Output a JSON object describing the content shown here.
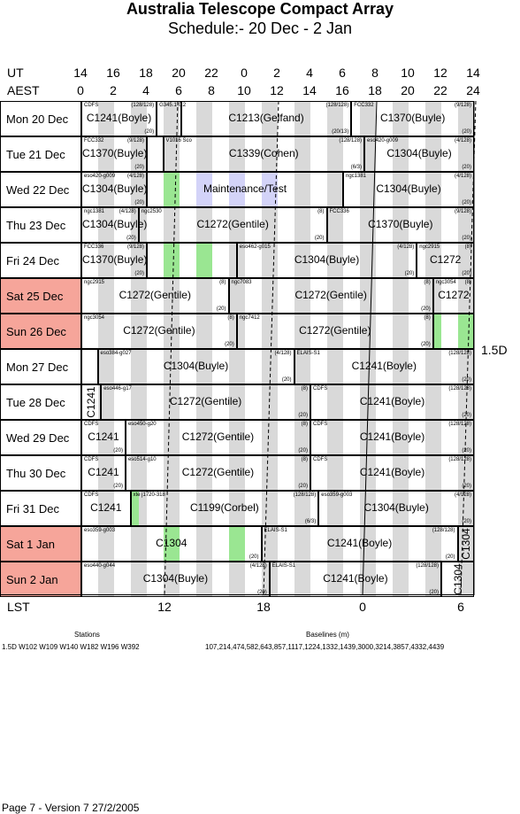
{
  "title": "Australia Telescope Compact Array",
  "subtitle": "Schedule:- 20 Dec - 2  Jan",
  "ut_label": "UT",
  "aest_label": "AEST",
  "lst_label": "LST",
  "ut_ticks": [
    "14",
    "16",
    "18",
    "20",
    "22",
    "0",
    "2",
    "4",
    "6",
    "8",
    "10",
    "12",
    "14"
  ],
  "aest_ticks": [
    "0",
    "2",
    "4",
    "6",
    "8",
    "10",
    "12",
    "14",
    "16",
    "18",
    "20",
    "22",
    "24"
  ],
  "lst_ticks": [
    "12",
    "18",
    "0",
    "6"
  ],
  "config": "1.5D",
  "days": [
    {
      "label": "Mon  20 Dec",
      "weekend": false,
      "blocks": [
        {
          "from": 0,
          "to": 4.6,
          "name": "C1241(Boyle)",
          "tl": "CDFS",
          "tr": "(128/128)",
          "br": "(20)"
        },
        {
          "from": 4.6,
          "to": 6.1,
          "name": "",
          "tl": "G345.1-0.2",
          "tr": "",
          "br": ""
        },
        {
          "from": 6.1,
          "to": 16.5,
          "name": "C1213(Gelfand)",
          "tl": "",
          "tr": "(128/128)",
          "br": "(20/13)"
        },
        {
          "from": 16.5,
          "to": 24,
          "name": "C1370(Buyle)",
          "tl": "FCC332",
          "tr": "(9/128)",
          "br": "(20)"
        }
      ]
    },
    {
      "label": "Tue  21 Dec",
      "weekend": false,
      "blocks": [
        {
          "from": 0,
          "to": 4,
          "name": "C1370(Buyle)",
          "tl": "FCC332",
          "tr": "(9/128)",
          "br": "(20)"
        },
        {
          "from": 4,
          "to": 5,
          "name": "",
          "tl": "",
          "tr": "",
          "br": ""
        },
        {
          "from": 5,
          "to": 17.3,
          "name": "C1339(Cohen)",
          "tl": "V1016 Sco",
          "tr": "(128/128)",
          "br": "(6/3)"
        },
        {
          "from": 17.3,
          "to": 24,
          "name": "C1304(Buyle)",
          "tl": "eso420-g009",
          "tr": "(4/128)",
          "br": "(20)"
        }
      ]
    },
    {
      "label": "Wed  22 Dec",
      "weekend": false,
      "blocks": [
        {
          "from": 0,
          "to": 4,
          "name": "C1304(Buyle)",
          "tl": "eso420-g009",
          "tr": "(4/128)",
          "br": "(20)"
        },
        {
          "from": 4,
          "to": 16,
          "name": "Maintenance/Test",
          "tl": "",
          "tr": "",
          "br": ""
        },
        {
          "from": 16,
          "to": 24,
          "name": "C1304(Buyle)",
          "tl": "ngc1381",
          "tr": "(4/128)",
          "br": "(20)"
        }
      ]
    },
    {
      "label": "Thu  23 Dec",
      "weekend": false,
      "blocks": [
        {
          "from": 0,
          "to": 3.5,
          "name": "C1304(Buyle)",
          "tl": "ngc1381",
          "tr": "(4/128)",
          "br": "(20)"
        },
        {
          "from": 3.5,
          "to": 15,
          "name": "C1272(Gentile)",
          "tl": "ngc2530",
          "tr": "(8)",
          "br": "(20)"
        },
        {
          "from": 15,
          "to": 24,
          "name": "C1370(Buyle)",
          "tl": "FCC336",
          "tr": "(9/128)",
          "br": "(20)"
        }
      ]
    },
    {
      "label": "Fri   24 Dec",
      "weekend": false,
      "blocks": [
        {
          "from": 0,
          "to": 4,
          "name": "C1370(Buyle)",
          "tl": "FCC336",
          "tr": "(9/128)",
          "br": "(20)"
        },
        {
          "from": 4,
          "to": 9.5,
          "name": "",
          "tl": "",
          "tr": "",
          "br": ""
        },
        {
          "from": 9.5,
          "to": 20.5,
          "name": "C1304(Buyle)",
          "tl": "eso462-g015",
          "tr": "(4/128)",
          "br": "(20)"
        },
        {
          "from": 20.5,
          "to": 24,
          "name": "C1272",
          "tl": "ngc2915",
          "tr": "(8)",
          "br": "(20)"
        }
      ]
    },
    {
      "label": "Sat   25 Dec",
      "weekend": true,
      "blocks": [
        {
          "from": 0,
          "to": 9,
          "name": "C1272(Gentile)",
          "tl": "ngc2915",
          "tr": "(8)",
          "br": "(20)"
        },
        {
          "from": 9,
          "to": 21.5,
          "name": "C1272(Gentile)",
          "tl": "ngc7083",
          "tr": "(8)",
          "br": "(20)"
        },
        {
          "from": 21.5,
          "to": 24,
          "name": "C1272",
          "tl": "ngc3054",
          "tr": "(8)",
          "br": ""
        }
      ]
    },
    {
      "label": "Sun   26 Dec",
      "weekend": true,
      "blocks": [
        {
          "from": 0,
          "to": 9.5,
          "name": "C1272(Gentile)",
          "tl": "ngc3054",
          "tr": "(8)",
          "br": "(20)"
        },
        {
          "from": 9.5,
          "to": 21.5,
          "name": "C1272(Gentile)",
          "tl": "ngc7412",
          "tr": "(8)",
          "br": "(20)"
        },
        {
          "from": 21.5,
          "to": 24,
          "name": "",
          "tl": "",
          "tr": "",
          "br": ""
        }
      ]
    },
    {
      "label": "Mon  27 Dec",
      "weekend": false,
      "blocks": [
        {
          "from": 0,
          "to": 1,
          "name": "",
          "tl": "",
          "tr": "",
          "br": ""
        },
        {
          "from": 1,
          "to": 13,
          "name": "C1304(Buyle)",
          "tl": "eso384-g027",
          "tr": "(4/128)",
          "br": "(20)"
        },
        {
          "from": 13,
          "to": 24,
          "name": "C1241(Boyle)",
          "tl": "ELAIS-S1",
          "tr": "(128/128)",
          "br": "(20)"
        }
      ]
    },
    {
      "label": "Tue  28 Dec",
      "weekend": false,
      "blocks": [
        {
          "from": 0,
          "to": 1.2,
          "name": "C1241",
          "tl": "",
          "tr": "",
          "br": "",
          "vertical": true
        },
        {
          "from": 1.2,
          "to": 14,
          "name": "C1272(Gentile)",
          "tl": "eso446-g17",
          "tr": "(8)",
          "br": "(20)"
        },
        {
          "from": 14,
          "to": 24,
          "name": "C1241(Boyle)",
          "tl": "CDFS",
          "tr": "(128/128)",
          "br": "(20)"
        }
      ]
    },
    {
      "label": "Wed  29 Dec",
      "weekend": false,
      "blocks": [
        {
          "from": 0,
          "to": 2.7,
          "name": "C1241",
          "tl": "CDFS",
          "tr": "",
          "br": "(20)"
        },
        {
          "from": 2.7,
          "to": 14,
          "name": "C1272(Gentile)",
          "tl": "eso450-g20",
          "tr": "(8)",
          "br": "(20)"
        },
        {
          "from": 14,
          "to": 24,
          "name": "C1241(Boyle)",
          "tl": "CDFS",
          "tr": "(128/128)",
          "br": "(20)"
        }
      ]
    },
    {
      "label": "Thu  30 Dec",
      "weekend": false,
      "blocks": [
        {
          "from": 0,
          "to": 2.7,
          "name": "C1241",
          "tl": "CDFS",
          "tr": "",
          "br": "(20)"
        },
        {
          "from": 2.7,
          "to": 14,
          "name": "C1272(Gentile)",
          "tl": "eso514-g10",
          "tr": "(8)",
          "br": "(20)"
        },
        {
          "from": 14,
          "to": 24,
          "name": "C1241(Boyle)",
          "tl": "CDFS",
          "tr": "(128/128)",
          "br": "(20)"
        }
      ]
    },
    {
      "label": "Fri   31 Dec",
      "weekend": false,
      "blocks": [
        {
          "from": 0,
          "to": 3,
          "name": "C1241",
          "tl": "CDFS",
          "tr": "",
          "br": ""
        },
        {
          "from": 3,
          "to": 14.5,
          "name": "C1199(Corbel)",
          "tl": "xte j1720-318",
          "tr": "(128/128)",
          "br": "(6/3)"
        },
        {
          "from": 14.5,
          "to": 24,
          "name": "C1304(Buyle)",
          "tl": "eso359-g003",
          "tr": "(4/128)",
          "br": "(20)"
        }
      ]
    },
    {
      "label": "Sat    1 Jan",
      "weekend": true,
      "blocks": [
        {
          "from": 0,
          "to": 11,
          "name": "C1304",
          "tl": "eso359-g003",
          "tr": "",
          "br": "(20)"
        },
        {
          "from": 11,
          "to": 23,
          "name": "C1241(Boyle)",
          "tl": "ELAIS-S1",
          "tr": "(128/128)",
          "br": "(20)"
        },
        {
          "from": 23,
          "to": 24,
          "name": "C1304",
          "tl": "",
          "tr": "",
          "br": "",
          "vertical": true
        }
      ]
    },
    {
      "label": "Sun    2 Jan",
      "weekend": true,
      "blocks": [
        {
          "from": 0,
          "to": 11.5,
          "name": "C1304(Buyle)",
          "tl": "eso440-g044",
          "tr": "(4/128)",
          "br": "(20)"
        },
        {
          "from": 11.5,
          "to": 22,
          "name": "C1241(Boyle)",
          "tl": "ELAIS-S1",
          "tr": "(128/128)",
          "br": "(20)"
        },
        {
          "from": 22,
          "to": 24,
          "name": "C1304",
          "tl": "",
          "tr": "",
          "br": "",
          "vertical": true
        }
      ]
    }
  ],
  "green_windows": [
    {
      "day": 2,
      "from": 5,
      "to": 6
    },
    {
      "day": 4,
      "from": 5,
      "to": 6
    },
    {
      "day": 4,
      "from": 7,
      "to": 8
    },
    {
      "day": 6,
      "from": 21.5,
      "to": 22
    },
    {
      "day": 6,
      "from": 23,
      "to": 24
    },
    {
      "day": 11,
      "from": 3,
      "to": 3.5
    },
    {
      "day": 12,
      "from": 5,
      "to": 6
    },
    {
      "day": 12,
      "from": 9,
      "to": 10
    }
  ],
  "blue_windows": [
    {
      "day": 2,
      "from": 7,
      "to": 8
    },
    {
      "day": 2,
      "from": 9,
      "to": 10
    },
    {
      "day": 2,
      "from": 11,
      "to": 12
    }
  ],
  "stations_label": "Stations",
  "stations": "1.5D    W102 W109 W140 W182 W196 W392",
  "baselines_label": "Baselines (m)",
  "baselines": "107,214,474,582,643,857,1117,1224,1332,1439,3000,3214,3857,4332,4439",
  "footer": "Page 7 - Version 7  27/2/2005"
}
